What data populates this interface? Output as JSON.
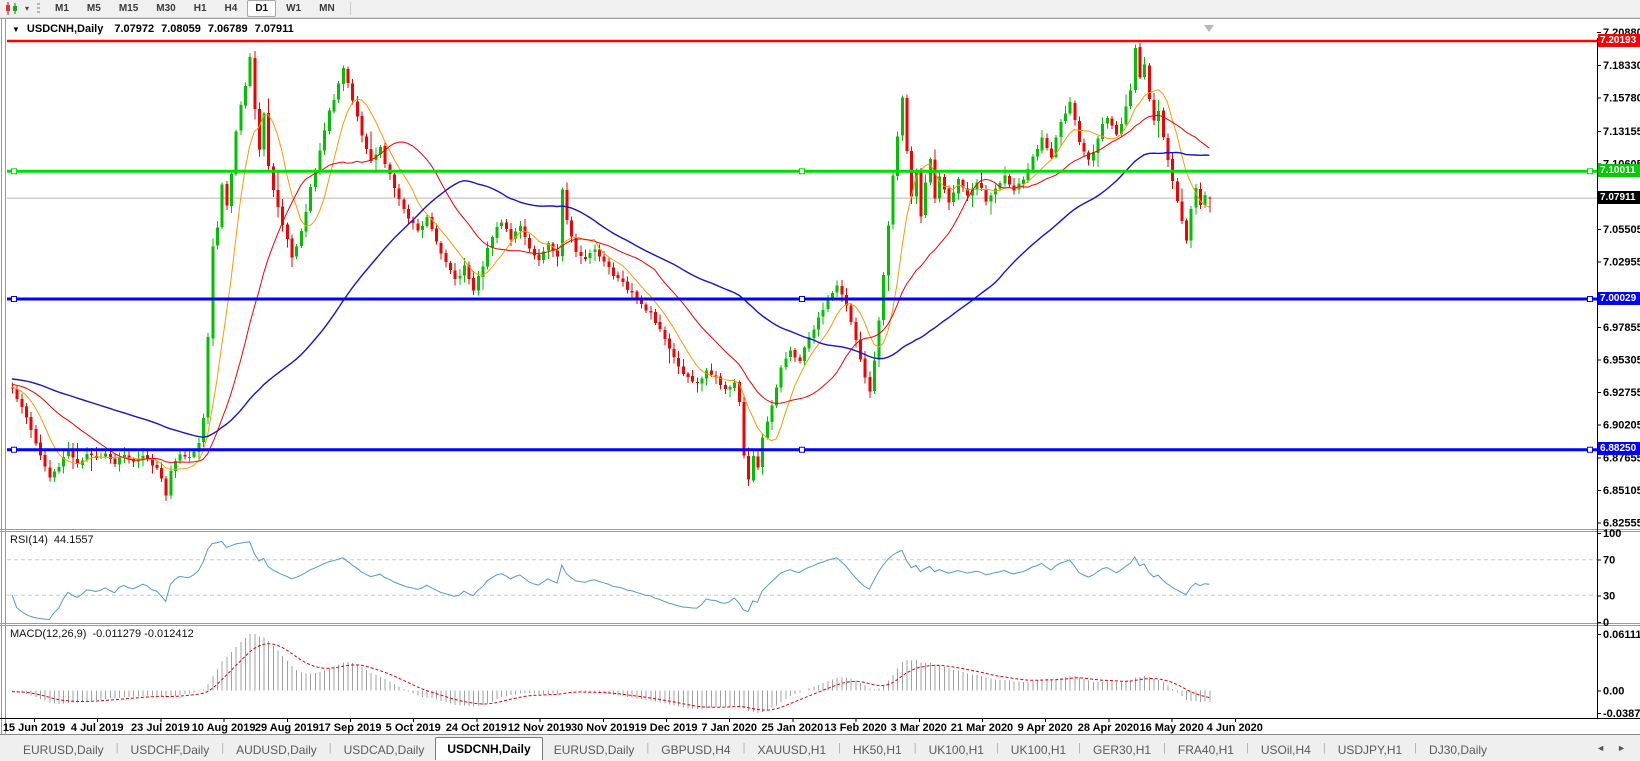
{
  "icons": {
    "title_caret": "▼",
    "dropdown_caret": "▾",
    "tab_prev": "◄",
    "tab_next": "►"
  },
  "toolbar": {
    "timeframes": [
      "M1",
      "M5",
      "M15",
      "M30",
      "H1",
      "H4",
      "D1",
      "W1",
      "MN"
    ],
    "active_timeframe": "D1"
  },
  "window": {
    "title_symbol": "USDCNH,Daily",
    "open": "7.07972",
    "high": "7.08059",
    "low": "7.06789",
    "close": "7.07911"
  },
  "colors": {
    "up": "#00c000",
    "down": "#f40000",
    "ma_fast": "#ff9900",
    "ma_mid": "#f40000",
    "ma_slow": "#1414cc",
    "rsi": "#4f9ad2",
    "rsi_dash": "#c8c8c8",
    "macd_hist": "#a0a0a0",
    "macd_signal": "#e00000"
  },
  "main_chart": {
    "price_axis_ticks": [
      "7.20880",
      "7.18330",
      "7.15780",
      "7.13155",
      "7.10605",
      "7.05505",
      "7.02955",
      "6.97855",
      "6.95305",
      "6.92755",
      "6.90205",
      "6.87655",
      "6.85105",
      "6.82555"
    ],
    "levels": [
      {
        "name": "resistance-line",
        "price": "7.20193",
        "color": "#ff0000",
        "badge_color": "#ff0000",
        "line_width": 2.5,
        "handles": false
      },
      {
        "name": "pivot-line",
        "price": "7.10011",
        "color": "#00dd00",
        "badge_color": "#00cc00",
        "line_width": 3,
        "handles": true
      },
      {
        "name": "current-price-line",
        "price": "7.07911",
        "color": "#b8b8b8",
        "badge_color": "#000000",
        "line_width": 1,
        "handles": false
      },
      {
        "name": "support-line-1",
        "price": "7.00029",
        "color": "#0000ff",
        "badge_color": "#0000ff",
        "line_width": 3,
        "handles": true
      },
      {
        "name": "support-line-2",
        "price": "6.88250",
        "color": "#0000ff",
        "badge_color": "#0000ff",
        "line_width": 3,
        "handles": true
      }
    ],
    "dates": [
      "15 Jun 2019",
      "4 Jul 2019",
      "23 Jul 2019",
      "10 Aug 2019",
      "29 Aug 2019",
      "17 Sep 2019",
      "5 Oct 2019",
      "24 Oct 2019",
      "12 Nov 2019",
      "30 Nov 2019",
      "19 Dec 2019",
      "7 Jan 2020",
      "25 Jan 2020",
      "13 Feb 2020",
      "3 Mar 2020",
      "21 Mar 2020",
      "9 Apr 2020",
      "28 Apr 2020",
      "16 May 2020",
      "4 Jun 2020"
    ]
  },
  "rsi_panel": {
    "label": "RSI(14)",
    "value": "44.1557",
    "axis": [
      "100",
      "70",
      "30",
      "0"
    ],
    "dashed_levels": [
      70,
      30
    ]
  },
  "macd_panel": {
    "label": "MACD(12,26,9)",
    "values": "-0.011279 -0.012412",
    "axis_top": "0.061119",
    "axis_zero": "0.00",
    "axis_bottom": "-0.038777"
  },
  "tabs": {
    "active_index": 4,
    "items": [
      "EURUSD,Daily",
      "USDCHF,Daily",
      "AUDUSD,Daily",
      "USDCAD,Daily",
      "USDCNH,Daily",
      "EURUSD,Daily",
      "GBPUSD,H4",
      "XAUUSD,H1",
      "HK50,H1",
      "UK100,H1",
      "UK100,H1",
      "GER30,H1",
      "FRA40,H1",
      "USOil,H4",
      "USDJPY,H1",
      "DJ30,Daily"
    ]
  },
  "chart_data": {
    "type": "candlestick",
    "symbol": "USDCNH",
    "timeframe": "Daily",
    "bars_visible": 258,
    "visible_range": {
      "price_min": 6.8214,
      "price_max": 7.2043,
      "date_start": "15 Jun 2019",
      "date_end": "4 Jun 2020"
    },
    "last_bar": {
      "open": 7.07972,
      "high": 7.08059,
      "low": 7.06789,
      "close": 7.07911
    },
    "horizontal_levels": [
      7.20193,
      7.10011,
      7.00029,
      6.8825
    ],
    "indicators": {
      "ma_fast_period": 8,
      "ma_mid_period": 21,
      "ma_slow_period": 55,
      "rsi": {
        "period": 14,
        "current": 44.1557,
        "levels": [
          70,
          30
        ]
      },
      "macd": {
        "fast": 12,
        "slow": 26,
        "signal": 9,
        "current_main": -0.011279,
        "current_signal": -0.012412
      }
    },
    "close_anchors": [
      [
        0,
        6.932
      ],
      [
        2,
        6.916
      ],
      [
        4,
        6.896
      ],
      [
        6,
        6.878
      ],
      [
        8,
        6.86
      ],
      [
        10,
        6.87
      ],
      [
        12,
        6.884
      ],
      [
        14,
        6.872
      ],
      [
        16,
        6.88
      ],
      [
        18,
        6.874
      ],
      [
        20,
        6.881
      ],
      [
        22,
        6.872
      ],
      [
        24,
        6.879
      ],
      [
        26,
        6.873
      ],
      [
        28,
        6.878
      ],
      [
        30,
        6.872
      ],
      [
        32,
        6.862
      ],
      [
        33,
        6.848
      ],
      [
        34,
        6.868
      ],
      [
        36,
        6.88
      ],
      [
        38,
        6.876
      ],
      [
        40,
        6.89
      ],
      [
        41,
        6.906
      ],
      [
        42,
        6.972
      ],
      [
        43,
        7.042
      ],
      [
        44,
        7.058
      ],
      [
        45,
        7.088
      ],
      [
        46,
        7.072
      ],
      [
        47,
        7.098
      ],
      [
        48,
        7.132
      ],
      [
        49,
        7.15
      ],
      [
        50,
        7.168
      ],
      [
        51,
        7.19
      ],
      [
        52,
        7.148
      ],
      [
        53,
        7.118
      ],
      [
        54,
        7.146
      ],
      [
        55,
        7.106
      ],
      [
        56,
        7.084
      ],
      [
        58,
        7.056
      ],
      [
        60,
        7.035
      ],
      [
        62,
        7.052
      ],
      [
        64,
        7.086
      ],
      [
        66,
        7.116
      ],
      [
        68,
        7.146
      ],
      [
        70,
        7.168
      ],
      [
        71,
        7.18
      ],
      [
        73,
        7.156
      ],
      [
        75,
        7.126
      ],
      [
        77,
        7.106
      ],
      [
        79,
        7.12
      ],
      [
        81,
        7.096
      ],
      [
        83,
        7.08
      ],
      [
        85,
        7.064
      ],
      [
        87,
        7.052
      ],
      [
        89,
        7.066
      ],
      [
        91,
        7.046
      ],
      [
        93,
        7.028
      ],
      [
        95,
        7.014
      ],
      [
        97,
        7.026
      ],
      [
        99,
        7.006
      ],
      [
        101,
        7.028
      ],
      [
        103,
        7.05
      ],
      [
        105,
        7.06
      ],
      [
        107,
        7.046
      ],
      [
        109,
        7.056
      ],
      [
        111,
        7.038
      ],
      [
        113,
        7.03
      ],
      [
        115,
        7.046
      ],
      [
        117,
        7.034
      ],
      [
        118,
        7.086
      ],
      [
        119,
        7.06
      ],
      [
        121,
        7.038
      ],
      [
        123,
        7.03
      ],
      [
        125,
        7.04
      ],
      [
        127,
        7.03
      ],
      [
        129,
        7.02
      ],
      [
        131,
        7.012
      ],
      [
        133,
        7.004
      ],
      [
        135,
        6.998
      ],
      [
        137,
        6.988
      ],
      [
        139,
        6.976
      ],
      [
        141,
        6.96
      ],
      [
        143,
        6.946
      ],
      [
        145,
        6.94
      ],
      [
        147,
        6.936
      ],
      [
        149,
        6.944
      ],
      [
        151,
        6.938
      ],
      [
        153,
        6.93
      ],
      [
        155,
        6.934
      ],
      [
        156,
        6.918
      ],
      [
        157,
        6.876
      ],
      [
        158,
        6.858
      ],
      [
        159,
        6.878
      ],
      [
        160,
        6.868
      ],
      [
        161,
        6.89
      ],
      [
        163,
        6.918
      ],
      [
        165,
        6.946
      ],
      [
        167,
        6.96
      ],
      [
        169,
        6.953
      ],
      [
        171,
        6.97
      ],
      [
        173,
        6.984
      ],
      [
        175,
        6.998
      ],
      [
        177,
        7.01
      ],
      [
        179,
        6.996
      ],
      [
        181,
        6.97
      ],
      [
        183,
        6.938
      ],
      [
        184,
        6.926
      ],
      [
        185,
        6.952
      ],
      [
        186,
        6.982
      ],
      [
        187,
        7.018
      ],
      [
        188,
        7.058
      ],
      [
        189,
        7.098
      ],
      [
        190,
        7.126
      ],
      [
        191,
        7.16
      ],
      [
        192,
        7.118
      ],
      [
        193,
        7.08
      ],
      [
        194,
        7.102
      ],
      [
        195,
        7.064
      ],
      [
        196,
        7.09
      ],
      [
        197,
        7.11
      ],
      [
        198,
        7.08
      ],
      [
        199,
        7.094
      ],
      [
        201,
        7.076
      ],
      [
        203,
        7.092
      ],
      [
        205,
        7.08
      ],
      [
        207,
        7.092
      ],
      [
        209,
        7.078
      ],
      [
        211,
        7.088
      ],
      [
        213,
        7.098
      ],
      [
        215,
        7.084
      ],
      [
        217,
        7.094
      ],
      [
        219,
        7.11
      ],
      [
        221,
        7.128
      ],
      [
        223,
        7.112
      ],
      [
        225,
        7.14
      ],
      [
        227,
        7.155
      ],
      [
        229,
        7.122
      ],
      [
        231,
        7.108
      ],
      [
        233,
        7.126
      ],
      [
        235,
        7.144
      ],
      [
        237,
        7.128
      ],
      [
        239,
        7.15
      ],
      [
        240,
        7.164
      ],
      [
        241,
        7.195
      ],
      [
        242,
        7.172
      ],
      [
        243,
        7.183
      ],
      [
        244,
        7.156
      ],
      [
        245,
        7.138
      ],
      [
        246,
        7.148
      ],
      [
        247,
        7.126
      ],
      [
        248,
        7.108
      ],
      [
        249,
        7.093
      ],
      [
        250,
        7.076
      ],
      [
        251,
        7.06
      ],
      [
        252,
        7.046
      ],
      [
        253,
        7.07
      ],
      [
        254,
        7.086
      ],
      [
        255,
        7.074
      ],
      [
        256,
        7.081
      ],
      [
        257,
        7.07911
      ]
    ]
  }
}
